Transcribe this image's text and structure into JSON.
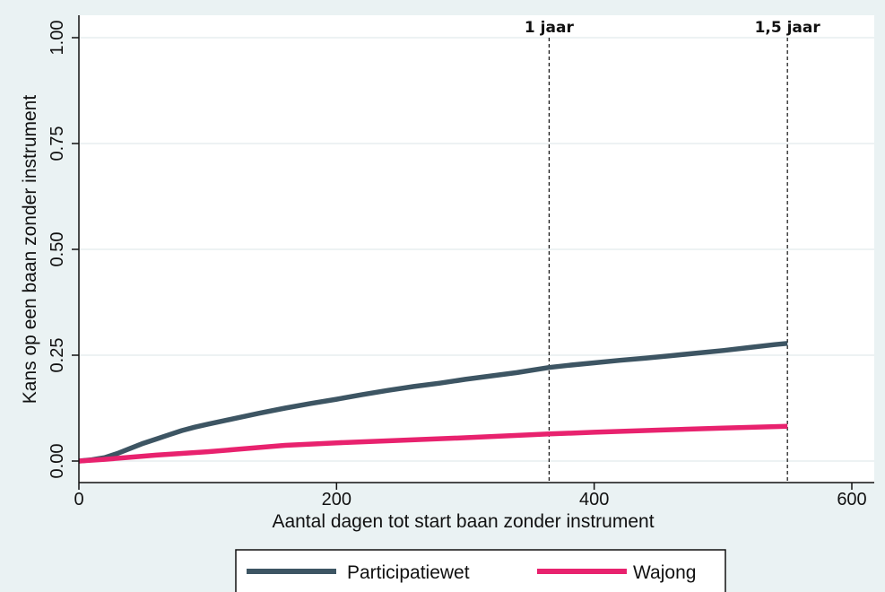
{
  "chart_data": {
    "type": "line",
    "title": "",
    "xlabel": "Aantal dagen tot start baan zonder instrument",
    "ylabel": "Kans op een baan zonder instrument",
    "xlim": [
      0,
      600
    ],
    "ylim": [
      0,
      1
    ],
    "x_ticks": [
      0,
      200,
      400,
      600
    ],
    "x_tick_labels": [
      "0",
      "200",
      "400",
      "600"
    ],
    "y_ticks": [
      0,
      0.25,
      0.5,
      0.75,
      1
    ],
    "y_tick_labels": [
      "0.00",
      "0.25",
      "0.50",
      "0.75",
      "1.00"
    ],
    "grid": true,
    "legend_position": "bottom",
    "series": [
      {
        "name": "Participatiewet",
        "color": "#3d5563",
        "x": [
          0,
          10,
          20,
          30,
          40,
          50,
          60,
          70,
          80,
          90,
          100,
          120,
          140,
          160,
          180,
          200,
          220,
          240,
          260,
          280,
          300,
          320,
          340,
          365,
          380,
          400,
          420,
          440,
          460,
          480,
          500,
          520,
          540,
          550
        ],
        "y": [
          0,
          0.003,
          0.008,
          0.018,
          0.03,
          0.042,
          0.052,
          0.062,
          0.072,
          0.08,
          0.087,
          0.1,
          0.113,
          0.125,
          0.136,
          0.146,
          0.157,
          0.167,
          0.176,
          0.184,
          0.193,
          0.201,
          0.209,
          0.221,
          0.226,
          0.232,
          0.238,
          0.243,
          0.249,
          0.255,
          0.261,
          0.268,
          0.275,
          0.278
        ]
      },
      {
        "name": "Wajong",
        "color": "#e8226e",
        "x": [
          0,
          20,
          40,
          60,
          80,
          100,
          120,
          140,
          160,
          180,
          200,
          250,
          300,
          350,
          365,
          400,
          450,
          500,
          550
        ],
        "y": [
          0,
          0.004,
          0.009,
          0.014,
          0.018,
          0.022,
          0.027,
          0.032,
          0.037,
          0.04,
          0.043,
          0.049,
          0.055,
          0.062,
          0.064,
          0.068,
          0.073,
          0.078,
          0.082
        ]
      }
    ],
    "annotations": [
      {
        "x": 365,
        "label": "1 jaar",
        "style": "dashed-vertical"
      },
      {
        "x": 550,
        "label": "1,5 jaar",
        "style": "dashed-vertical"
      }
    ]
  }
}
